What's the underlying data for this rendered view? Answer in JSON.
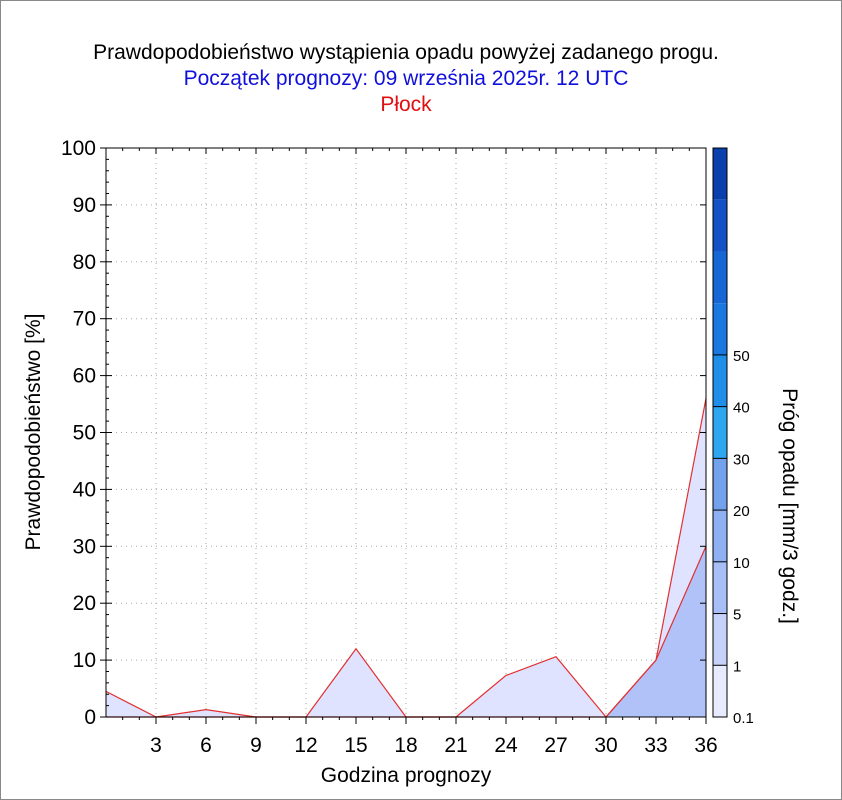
{
  "colors": {
    "title": "#000000",
    "subtitle": "#1010dd",
    "station": "#e01010",
    "fill_light": "#dfe3ff",
    "fill_dark": "#b0c2f8",
    "line": "#e23030"
  },
  "chart_data": {
    "type": "area",
    "title": "Prawdopodobieństwo wystąpienia opadu powyżej zadanego progu.",
    "subtitle": "Początek prognozy: 09 września 2025r. 12 UTC",
    "station": "Płock",
    "xlabel": "Godzina prognozy",
    "ylabel": "Prawdopodobieństwo [%]",
    "xlim": [
      0,
      36
    ],
    "ylim": [
      0,
      100
    ],
    "xticks": [
      3,
      6,
      9,
      12,
      15,
      18,
      21,
      24,
      27,
      30,
      33,
      36
    ],
    "yticks": [
      0,
      10,
      20,
      30,
      40,
      50,
      60,
      70,
      80,
      90,
      100
    ],
    "grid": true,
    "x": [
      0,
      3,
      6,
      9,
      12,
      15,
      18,
      21,
      24,
      27,
      30,
      33,
      36
    ],
    "series": [
      {
        "threshold": 0.1,
        "values": [
          4.5,
          0,
          1.3,
          0,
          0,
          12,
          0,
          0,
          7.3,
          10.6,
          0,
          10,
          56
        ]
      },
      {
        "threshold": 1,
        "values": [
          0,
          0,
          0,
          0,
          0,
          0,
          0,
          0,
          0,
          0,
          0,
          10,
          30
        ]
      }
    ],
    "colorbar": {
      "label": "Próg opadu [mm/3 godz.]",
      "tick_labels": [
        "0.1",
        "1",
        "5",
        "10",
        "20",
        "30",
        "40",
        "50"
      ],
      "colors": [
        "#e8ebff",
        "#c6d2fa",
        "#a8bef6",
        "#8fb0f2",
        "#73a1ec",
        "#2fa6f0",
        "#1f8ee8",
        "#1a78e0",
        "#1766d6",
        "#1252c6",
        "#0c3fae"
      ]
    }
  }
}
